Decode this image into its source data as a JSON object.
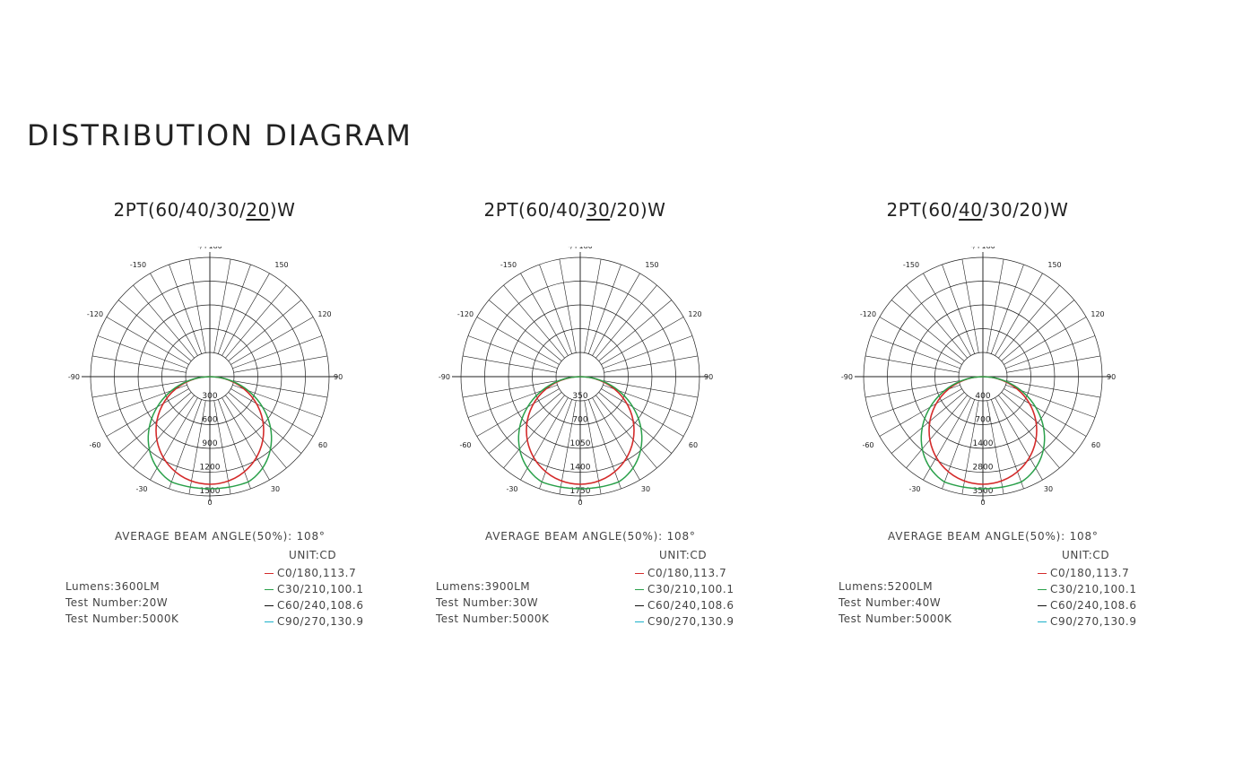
{
  "title": "DISTRIBUTION DIAGRAM",
  "colors": {
    "c0": "#d42b2b",
    "c30": "#2aa04a",
    "c60": "#111111",
    "c90": "#1bb0c9"
  },
  "chart_data": [
    {
      "type": "polar",
      "title_parts": [
        "2PT(60/40/30/",
        "20",
        ")W"
      ],
      "angle_labels": {
        "top": "-/+180",
        "tl": "-150",
        "tr": "150",
        "ul": "-120",
        "ur": "120",
        "l": "-90",
        "r": "90",
        "ll": "-60",
        "lr": "60",
        "bl": "-30",
        "br": "30",
        "b": "0"
      },
      "extra_left_label": "",
      "ring_labels": [
        "300",
        "600",
        "900",
        "1200",
        "1500"
      ],
      "series": [
        {
          "name": "C0/180,113.7",
          "color_key": "c0",
          "shape": "circle",
          "max": 1500,
          "scale": 0.96
        },
        {
          "name": "C30/210,100.1",
          "color_key": "c30",
          "shape": "wide",
          "max": 1500,
          "scale": 1.0
        },
        {
          "name": "C60/240,108.6",
          "color_key": "c60",
          "shape": "none",
          "max": 1500,
          "scale": 0
        },
        {
          "name": "C90/270,130.9",
          "color_key": "c90",
          "shape": "none",
          "max": 1500,
          "scale": 0
        }
      ],
      "beam_label": "AVERAGE BEAM ANGLE(50%): 108°",
      "unit_label": "UNIT:CD",
      "info": [
        "Lumens:3600LM",
        "Test Number:20W",
        "Test Number:5000K"
      ]
    },
    {
      "type": "polar",
      "title_parts": [
        "2PT(60/40/",
        "30",
        "/20)W"
      ],
      "angle_labels": {
        "top": "-/+180",
        "tl": "-150",
        "tr": "150",
        "ul": "-120",
        "ur": "120",
        "l": "-90",
        "r": "90",
        "ll": "-60",
        "lr": "60",
        "bl": "-30",
        "br": "30",
        "b": "0"
      },
      "extra_left_label": "",
      "ring_labels": [
        "350",
        "700",
        "1050",
        "1400",
        "1750"
      ],
      "series": [
        {
          "name": "C0/180,113.7",
          "color_key": "c0",
          "shape": "circle",
          "max": 1750,
          "scale": 0.96
        },
        {
          "name": "C30/210,100.1",
          "color_key": "c30",
          "shape": "wide",
          "max": 1750,
          "scale": 1.0
        },
        {
          "name": "C60/240,108.6",
          "color_key": "c60",
          "shape": "none",
          "max": 1750,
          "scale": 0
        },
        {
          "name": "C90/270,130.9",
          "color_key": "c90",
          "shape": "none",
          "max": 1750,
          "scale": 0
        }
      ],
      "beam_label": "AVERAGE BEAM ANGLE(50%): 108°",
      "unit_label": "UNIT:CD",
      "info": [
        "Lumens:3900LM",
        "Test Number:30W",
        "Test Number:5000K"
      ]
    },
    {
      "type": "polar",
      "title_parts": [
        "2PT(60/",
        "40",
        "/30/20)W"
      ],
      "angle_labels": {
        "top": "-/+180",
        "tl": "-150",
        "tr": "150",
        "ul": "-120",
        "ur": "120",
        "l": "-90",
        "r": "90",
        "ll": "-60",
        "lr": "60",
        "bl": "-30",
        "br": "30",
        "b": "0"
      },
      "extra_left_label": "90",
      "ring_labels": [
        "400",
        "700",
        "1400",
        "2800",
        "3500"
      ],
      "series": [
        {
          "name": "C0/180,113.7",
          "color_key": "c0",
          "shape": "circle",
          "max": 3500,
          "scale": 0.96
        },
        {
          "name": "C30/210,100.1",
          "color_key": "c30",
          "shape": "wide",
          "max": 3500,
          "scale": 1.0
        },
        {
          "name": "C60/240,108.6",
          "color_key": "c60",
          "shape": "none",
          "max": 3500,
          "scale": 0
        },
        {
          "name": "C90/270,130.9",
          "color_key": "c90",
          "shape": "none",
          "max": 3500,
          "scale": 0
        }
      ],
      "beam_label": "AVERAGE BEAM ANGLE(50%): 108°",
      "unit_label": "UNIT:CD",
      "info": [
        "Lumens:5200LM",
        "Test Number:40W",
        "Test Number:5000K"
      ]
    }
  ]
}
